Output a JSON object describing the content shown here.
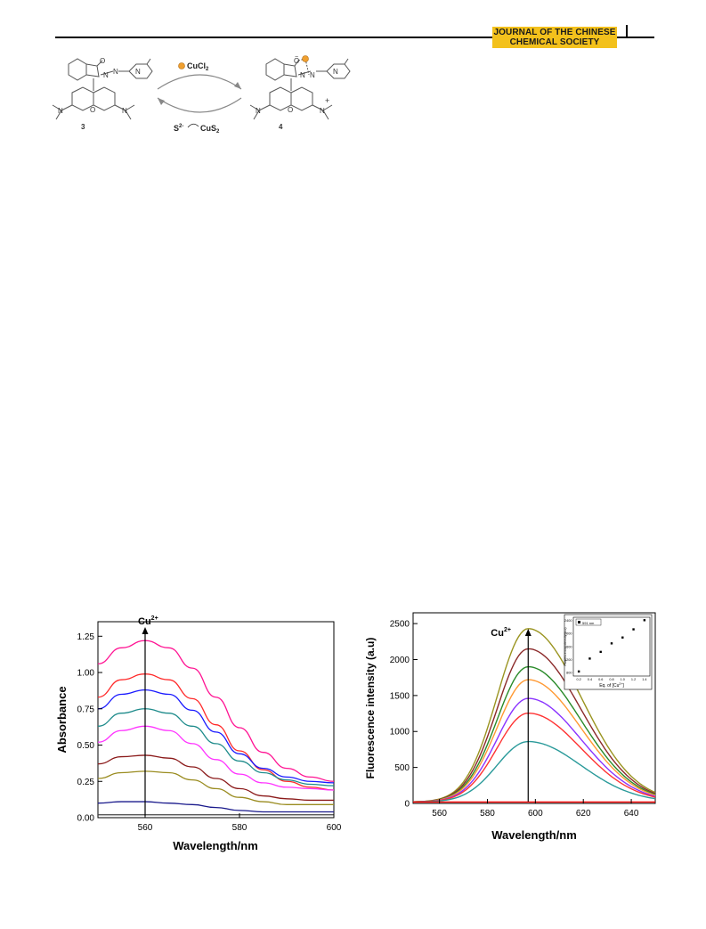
{
  "journal": {
    "line1": "JOURNAL OF THE CHINESE",
    "line2": "CHEMICAL SOCIETY",
    "badge_color": "#f3c11c"
  },
  "scheme": {
    "reagent_forward": "CuCl",
    "reagent_forward_sub": "2",
    "reagent_reverse": "S",
    "reagent_reverse_sup": "2-",
    "product_reverse": "CuS",
    "product_reverse_sub": "2",
    "compound_left": "3",
    "compound_right": "4",
    "atom_o": "O",
    "atom_n": "N",
    "charge_plus": "+",
    "charge_minus": "−",
    "bond_label_left": "N",
    "bond_label_right": "N"
  },
  "chart_data": [
    {
      "type": "line",
      "xlabel": "Wavelength/nm",
      "ylabel": "Absorbance",
      "xlim": [
        550,
        600
      ],
      "ylim": [
        0,
        1.35
      ],
      "xticks": [
        560,
        580,
        600
      ],
      "yticks": [
        "0.00",
        "0.25",
        "0.50",
        "0.75",
        "1.00",
        "1.25"
      ],
      "arrow_label": "Cu",
      "arrow_label_sup": "2+",
      "arrow_x": 560,
      "x": [
        550,
        555,
        560,
        565,
        570,
        575,
        580,
        585,
        590,
        595,
        600
      ],
      "series": [
        {
          "color": "#ff1493",
          "values": [
            1.06,
            1.17,
            1.22,
            1.17,
            1.03,
            0.83,
            0.62,
            0.45,
            0.34,
            0.28,
            0.25
          ]
        },
        {
          "color": "#ff2a2a",
          "values": [
            0.83,
            0.95,
            0.99,
            0.95,
            0.82,
            0.64,
            0.46,
            0.33,
            0.25,
            0.21,
            0.19
          ]
        },
        {
          "color": "#1a1aff",
          "values": [
            0.75,
            0.85,
            0.88,
            0.85,
            0.74,
            0.59,
            0.44,
            0.34,
            0.28,
            0.25,
            0.24
          ]
        },
        {
          "color": "#1e8b8b",
          "values": [
            0.63,
            0.72,
            0.75,
            0.72,
            0.63,
            0.51,
            0.39,
            0.31,
            0.26,
            0.23,
            0.22
          ]
        },
        {
          "color": "#ff33ff",
          "values": [
            0.52,
            0.6,
            0.63,
            0.6,
            0.51,
            0.4,
            0.3,
            0.24,
            0.21,
            0.2,
            0.19
          ]
        },
        {
          "color": "#8b1a1a",
          "values": [
            0.37,
            0.42,
            0.43,
            0.41,
            0.35,
            0.27,
            0.2,
            0.15,
            0.13,
            0.12,
            0.12
          ]
        },
        {
          "color": "#9a8c20",
          "values": [
            0.27,
            0.31,
            0.32,
            0.31,
            0.26,
            0.2,
            0.14,
            0.11,
            0.09,
            0.09,
            0.09
          ]
        },
        {
          "color": "#1a1a8c",
          "values": [
            0.1,
            0.11,
            0.11,
            0.1,
            0.09,
            0.07,
            0.05,
            0.04,
            0.04,
            0.04,
            0.04
          ]
        },
        {
          "color": "#444444",
          "values": [
            0.02,
            0.02,
            0.02,
            0.02,
            0.02,
            0.02,
            0.02,
            0.02,
            0.02,
            0.02,
            0.02
          ]
        }
      ]
    },
    {
      "type": "line",
      "xlabel": "Wavelength/nm",
      "ylabel": "Fluorescence intensity (a.u)",
      "xlim": [
        549,
        650
      ],
      "ylim": [
        0,
        2650
      ],
      "xticks": [
        560,
        580,
        600,
        620,
        640
      ],
      "yticks": [
        0,
        500,
        1000,
        1500,
        2000,
        2500
      ],
      "arrow_label": "Cu",
      "arrow_label_sup": "2+",
      "arrow_x": 597,
      "peak_x": 597,
      "sigma_left": 13,
      "sigma_right": 22,
      "series": [
        {
          "color": "#9a9420",
          "peak": 2410
        },
        {
          "color": "#8b2a2a",
          "peak": 2130
        },
        {
          "color": "#2a8b2a",
          "peak": 1880
        },
        {
          "color": "#ff9933",
          "peak": 1700
        },
        {
          "color": "#8a33ff",
          "peak": 1440
        },
        {
          "color": "#ff3333",
          "peak": 1235
        },
        {
          "color": "#2a9a9a",
          "peak": 840
        },
        {
          "color": "#ff0000",
          "peak": 0
        }
      ],
      "inset": {
        "type": "scatter",
        "legend": "591 nm",
        "xlabel": "Eq. of [Cu",
        "xlabel_sup": "2+",
        "xlabel_end": "]",
        "ylabel": "Fluorescence intensity (a.u)",
        "xticks": [
          "0.2",
          "0.4",
          "0.6",
          "0.8",
          "1.0",
          "1.2",
          "1.4"
        ],
        "yticks": [
          "800",
          "1200",
          "1600",
          "2000",
          "2400"
        ],
        "xlim": [
          0.1,
          1.5
        ],
        "ylim": [
          700,
          2500
        ],
        "points": [
          [
            0.2,
            840
          ],
          [
            0.4,
            1235
          ],
          [
            0.6,
            1440
          ],
          [
            0.8,
            1700
          ],
          [
            1.0,
            1880
          ],
          [
            1.2,
            2130
          ],
          [
            1.4,
            2410
          ]
        ]
      }
    }
  ]
}
